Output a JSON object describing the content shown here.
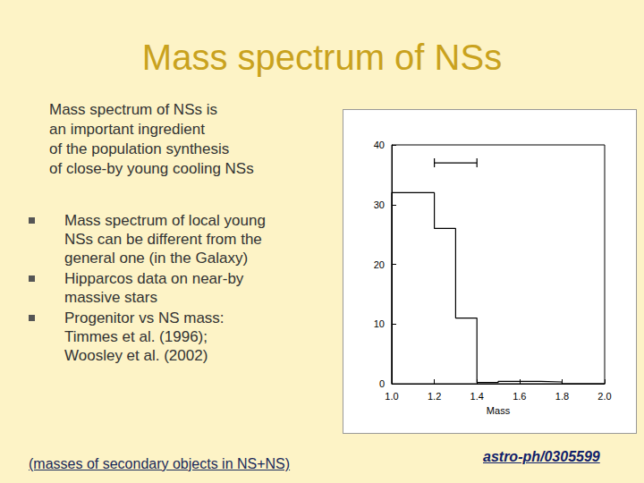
{
  "slide": {
    "title": "Mass spectrum of NSs",
    "intro": [
      "Mass spectrum of NSs is",
      "an important ingredient",
      "of the population synthesis",
      "of close-by young cooling NSs"
    ],
    "bullets": [
      [
        "Mass spectrum of local young",
        "NSs can be different from the",
        "general one (in the Galaxy)"
      ],
      [
        "Hipparcos data on near-by",
        "massive stars"
      ],
      [
        "Progenitor vs NS mass:",
        "Timmes et al. (1996);",
        "Woosley et al. (2002)"
      ]
    ],
    "footnote": "(masses of secondary objects in NS+NS)",
    "reference": "astro-ph/0305599"
  },
  "chart_data": {
    "type": "histogram",
    "xlabel": "Mass",
    "bins": [
      1.0,
      1.1,
      1.2,
      1.3,
      1.4,
      1.5,
      1.6,
      1.7,
      1.8,
      1.9,
      2.0
    ],
    "values": [
      32,
      32,
      26,
      11,
      0.2,
      0.4,
      0.4,
      0.3,
      0,
      0
    ],
    "color": "#000000",
    "xlim": [
      1,
      2
    ],
    "xticks": [
      {
        "value": 1,
        "label": "1.0"
      },
      1.2,
      1.4,
      1.6,
      1.8,
      {
        "value": 2,
        "label": "2.0"
      }
    ],
    "ylim": [
      0,
      40
    ],
    "yticks": [
      0,
      10,
      20,
      30,
      40
    ],
    "grid": false,
    "range_marker": {
      "x": [
        1.2,
        1.4
      ],
      "y": 37
    }
  }
}
